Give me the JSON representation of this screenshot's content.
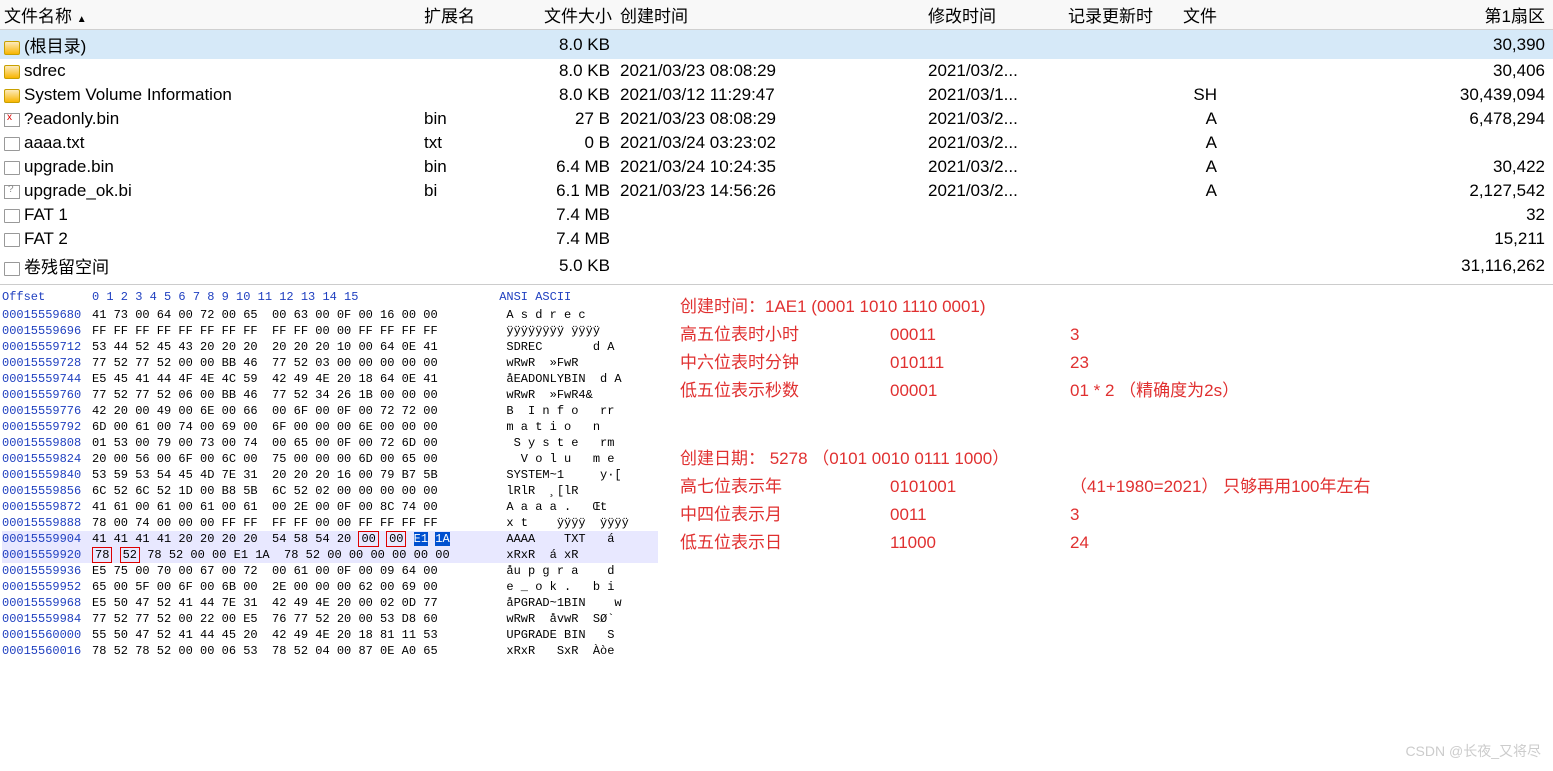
{
  "columns": {
    "name": "文件名称",
    "ext": "扩展名",
    "size": "文件大小",
    "created": "创建时间",
    "modified": "修改时间",
    "record": "记录更新时",
    "attr": "文件",
    "sector": "第1扇区"
  },
  "rows": [
    {
      "icon": "folder",
      "name": "(根目录)",
      "ext": "",
      "size": "8.0 KB",
      "created": "",
      "modified": "",
      "attr": "",
      "sector": "30,390",
      "sel": true
    },
    {
      "icon": "folder",
      "name": "sdrec",
      "ext": "",
      "size": "8.0 KB",
      "created": "2021/03/23  08:08:29",
      "modified": "2021/03/2...",
      "attr": "",
      "sector": "30,406"
    },
    {
      "icon": "folder",
      "name": "System Volume Information",
      "ext": "",
      "size": "8.0 KB",
      "created": "2021/03/12  11:29:47",
      "modified": "2021/03/1...",
      "attr": "SH",
      "sector": "30,439,094"
    },
    {
      "icon": "x",
      "name": "?eadonly.bin",
      "ext": "bin",
      "size": "27 B",
      "created": "2021/03/23  08:08:29",
      "modified": "2021/03/2...",
      "attr": "A",
      "sector": "6,478,294"
    },
    {
      "icon": "file",
      "name": "aaaa.txt",
      "ext": "txt",
      "size": "0 B",
      "created": "2021/03/24  03:23:02",
      "modified": "2021/03/2...",
      "attr": "A",
      "sector": ""
    },
    {
      "icon": "file",
      "name": "upgrade.bin",
      "ext": "bin",
      "size": "6.4 MB",
      "created": "2021/03/24  10:24:35",
      "modified": "2021/03/2...",
      "attr": "A",
      "sector": "30,422"
    },
    {
      "icon": "q",
      "name": "upgrade_ok.bi",
      "ext": "bi",
      "size": "6.1 MB",
      "created": "2021/03/23  14:56:26",
      "modified": "2021/03/2...",
      "attr": "A",
      "sector": "2,127,542"
    },
    {
      "icon": "file",
      "name": "FAT 1",
      "ext": "",
      "size": "7.4 MB",
      "created": "",
      "modified": "",
      "attr": "",
      "sector": "32"
    },
    {
      "icon": "file",
      "name": "FAT 2",
      "ext": "",
      "size": "7.4 MB",
      "created": "",
      "modified": "",
      "attr": "",
      "sector": "15,211"
    },
    {
      "icon": "file",
      "name": "卷残留空间",
      "ext": "",
      "size": "5.0 KB",
      "created": "",
      "modified": "",
      "attr": "",
      "sector": "31,116,262"
    }
  ],
  "hex": {
    "header_offset": "Offset",
    "header_cols": " 0  1  2  3  4  5  6  7   8  9 10 11 12 13 14 15",
    "header_ascii": "ANSI ASCII",
    "lines": [
      {
        "off": "00015559680",
        "b": "41 73 00 64 00 72 00 65  00 63 00 0F 00 16 00 00",
        "a": "A s d r e c"
      },
      {
        "off": "00015559696",
        "b": "FF FF FF FF FF FF FF FF  FF FF 00 00 FF FF FF FF",
        "a": "ÿÿÿÿÿÿÿÿ ÿÿÿÿ"
      },
      {
        "off": "00015559712",
        "b": "53 44 52 45 43 20 20 20  20 20 20 10 00 64 0E 41",
        "a": "SDREC       d A"
      },
      {
        "off": "00015559728",
        "b": "77 52 77 52 00 00 BB 46  77 52 03 00 00 00 00 00",
        "a": "wRwR  »FwR"
      },
      {
        "off": "00015559744",
        "b": "E5 45 41 44 4F 4E 4C 59  42 49 4E 20 18 64 0E 41",
        "a": "åEADONLYBIN  d A"
      },
      {
        "off": "00015559760",
        "b": "77 52 77 52 06 00 BB 46  77 52 34 26 1B 00 00 00",
        "a": "wRwR  »FwR4&"
      },
      {
        "off": "00015559776",
        "b": "42 20 00 49 00 6E 00 66  00 6F 00 0F 00 72 72 00",
        "a": "B  I n f o   rr"
      },
      {
        "off": "00015559792",
        "b": "6D 00 61 00 74 00 69 00  6F 00 00 00 6E 00 00 00",
        "a": "m a t i o   n"
      },
      {
        "off": "00015559808",
        "b": "01 53 00 79 00 73 00 74  00 65 00 0F 00 72 6D 00",
        "a": " S y s t e   rm"
      },
      {
        "off": "00015559824",
        "b": "20 00 56 00 6F 00 6C 00  75 00 00 00 6D 00 65 00",
        "a": "  V o l u   m e"
      },
      {
        "off": "00015559840",
        "b": "53 59 53 54 45 4D 7E 31  20 20 20 16 00 79 B7 5B",
        "a": "SYSTEM~1     y·["
      },
      {
        "off": "00015559856",
        "b": "6C 52 6C 52 1D 00 B8 5B  6C 52 02 00 00 00 00 00",
        "a": "lRlR  ¸[lR"
      },
      {
        "off": "00015559872",
        "b": "41 61 00 61 00 61 00 61  00 2E 00 0F 00 8C 74 00",
        "a": "A a a a .   Œt"
      },
      {
        "off": "00015559888",
        "b": "78 00 74 00 00 00 FF FF  FF FF 00 00 FF FF FF FF",
        "a": "x t    ÿÿÿÿ  ÿÿÿÿ"
      },
      {
        "off": "00015559904",
        "b": "41 41 41 41 20 20 20 20  54 58 54 20 00 00 E1 1A",
        "a": "AAAA    TXT   á",
        "box1": [
          12,
          13
        ],
        "sel": [
          14,
          15
        ],
        "hl": true
      },
      {
        "off": "00015559920",
        "b": "78 52 78 52 00 00 E1 1A  78 52 00 00 00 00 00 00",
        "a": "xRxR  á xR",
        "box2": [
          0,
          1
        ],
        "hl": true
      },
      {
        "off": "00015559936",
        "b": "E5 75 00 70 00 67 00 72  00 61 00 0F 00 09 64 00",
        "a": "åu p g r a    d"
      },
      {
        "off": "00015559952",
        "b": "65 00 5F 00 6F 00 6B 00  2E 00 00 00 62 00 69 00",
        "a": "e _ o k .   b i"
      },
      {
        "off": "00015559968",
        "b": "E5 50 47 52 41 44 7E 31  42 49 4E 20 00 02 0D 77",
        "a": "åPGRAD~1BIN    w"
      },
      {
        "off": "00015559984",
        "b": "77 52 77 52 00 22 00 E5  76 77 52 20 00 53 D8 60",
        "a": "wRwR  åvwR  SØ`"
      },
      {
        "off": "00015560000",
        "b": "55 50 47 52 41 44 45 20  42 49 4E 20 18 81 11 53",
        "a": "UPGRADE BIN   S"
      },
      {
        "off": "00015560016",
        "b": "78 52 78 52 00 00 06 53  78 52 04 00 87 0E A0 65",
        "a": "xRxR   SxR  Àòe"
      }
    ]
  },
  "anno": {
    "title1": "创建时间：1AE1 (0001 1010 1110 0001)",
    "r1": {
      "label": "高五位表时小时",
      "bits": "00011",
      "val": "3"
    },
    "r2": {
      "label": "中六位表时分钟",
      "bits": "010111",
      "val": "23"
    },
    "r3": {
      "label": "低五位表示秒数",
      "bits": "00001",
      "val": "01 * 2 （精确度为2s）"
    },
    "title2": "创建日期： 5278  （0101 0010 0111 1000）",
    "r4": {
      "label": "高七位表示年",
      "bits": "0101001",
      "val": "（41+1980=2021）  只够再用100年左右"
    },
    "r5": {
      "label": "中四位表示月",
      "bits": "0011",
      "val": "3"
    },
    "r6": {
      "label": "低五位表示日",
      "bits": "11000",
      "val": "24"
    }
  },
  "watermark": "CSDN @长夜_又将尽"
}
